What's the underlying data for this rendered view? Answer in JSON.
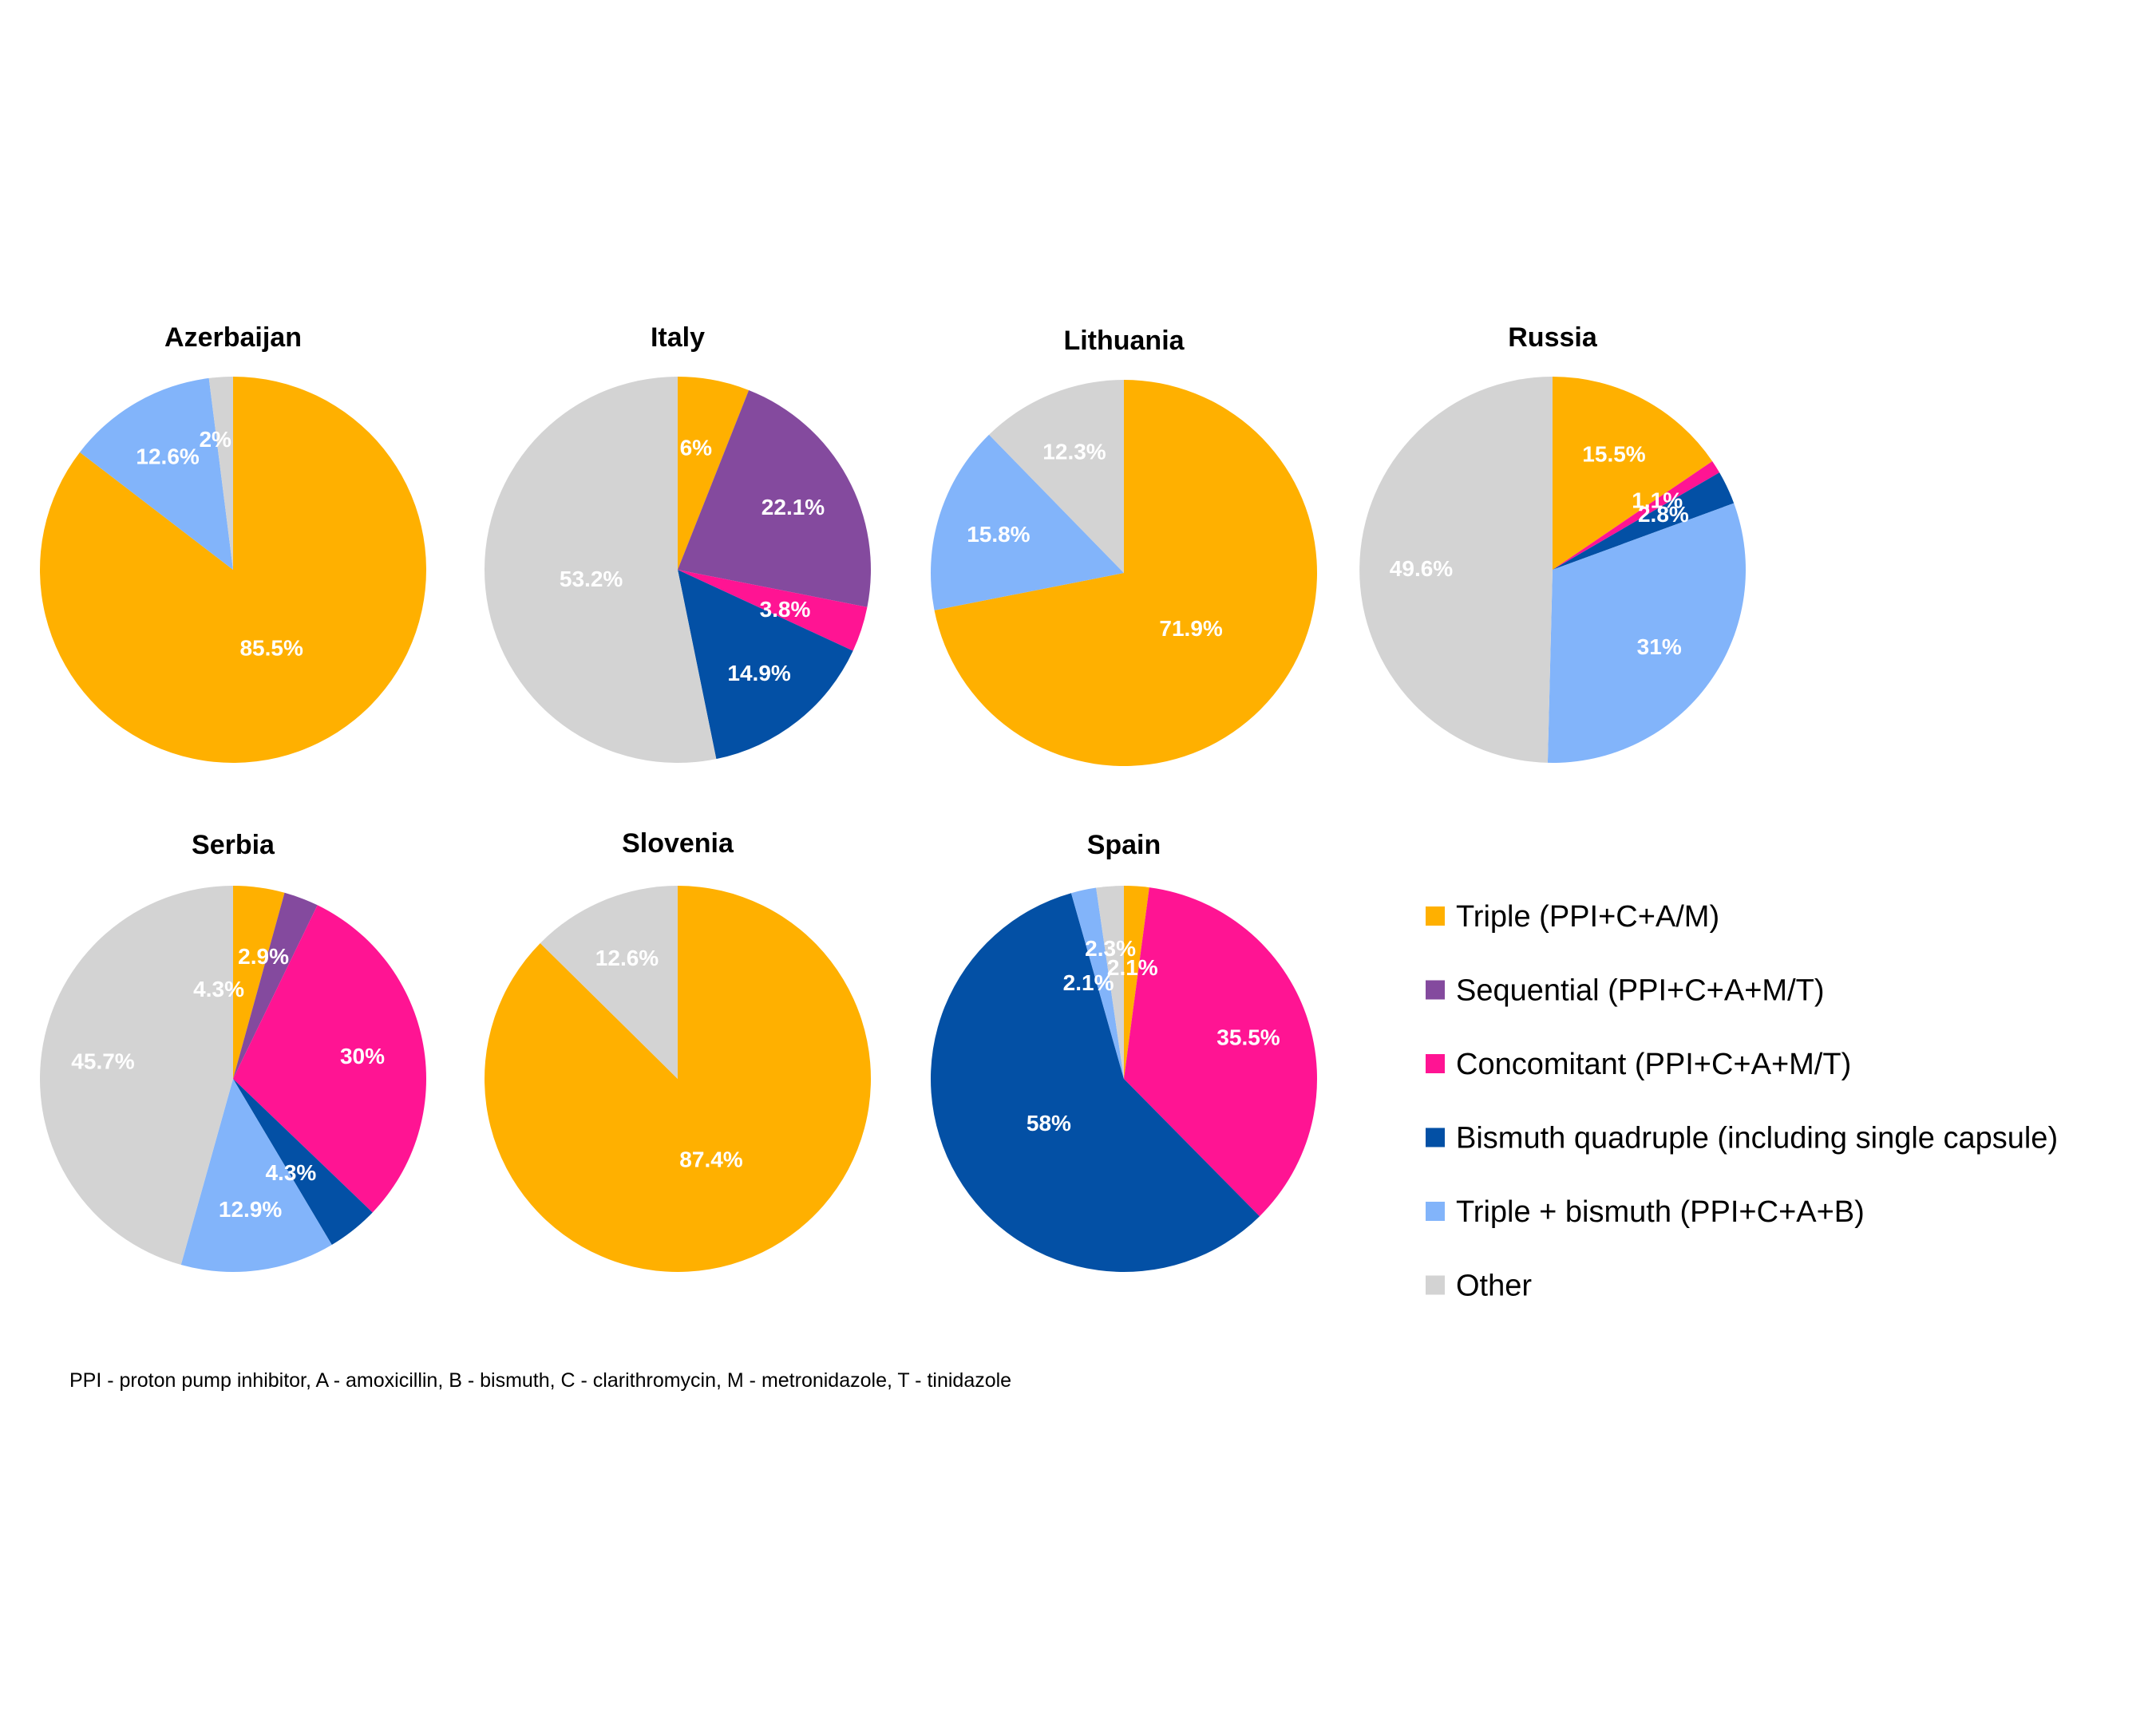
{
  "categories": [
    {
      "key": "triple",
      "label": "Triple (PPI+C+A/M)",
      "color": "#FFB000"
    },
    {
      "key": "sequential",
      "label": "Sequential (PPI+C+A+M/T)",
      "color": "#844A9E"
    },
    {
      "key": "concomitant",
      "label": "Concomitant (PPI+C+A+M/T)",
      "color": "#FF1493"
    },
    {
      "key": "bismuth_quadruple",
      "label": "Bismuth quadruple (including single capsule)",
      "color": "#0350A5"
    },
    {
      "key": "triple_bismuth",
      "label": "Triple + bismuth (PPI+C+A+B)",
      "color": "#82B4FA"
    },
    {
      "key": "other",
      "label": "Other",
      "color": "#D3D3D3"
    }
  ],
  "chart_data": [
    {
      "type": "pie",
      "title": "Azerbaijan",
      "slices": [
        {
          "category": "triple",
          "value": 85.5,
          "label": "85.5%"
        },
        {
          "category": "triple_bismuth",
          "value": 12.6,
          "label": "12.6%"
        },
        {
          "category": "other",
          "value": 2,
          "label": "2%"
        }
      ]
    },
    {
      "type": "pie",
      "title": "Italy",
      "slices": [
        {
          "category": "triple",
          "value": 6,
          "label": "6%"
        },
        {
          "category": "sequential",
          "value": 22.1,
          "label": "22.1%"
        },
        {
          "category": "concomitant",
          "value": 3.8,
          "label": "3.8%"
        },
        {
          "category": "bismuth_quadruple",
          "value": 14.9,
          "label": "14.9%"
        },
        {
          "category": "other",
          "value": 53.2,
          "label": "53.2%"
        }
      ]
    },
    {
      "type": "pie",
      "title": "Lithuania",
      "slices": [
        {
          "category": "triple",
          "value": 71.9,
          "label": "71.9%"
        },
        {
          "category": "triple_bismuth",
          "value": 15.8,
          "label": "15.8%"
        },
        {
          "category": "other",
          "value": 12.3,
          "label": "12.3%"
        }
      ]
    },
    {
      "type": "pie",
      "title": "Russia",
      "slices": [
        {
          "category": "triple",
          "value": 15.5,
          "label": "15.5%"
        },
        {
          "category": "concomitant",
          "value": 1.1,
          "label": "1.1%"
        },
        {
          "category": "bismuth_quadruple",
          "value": 2.8,
          "label": "2.8%"
        },
        {
          "category": "triple_bismuth",
          "value": 31,
          "label": "31%"
        },
        {
          "category": "other",
          "value": 49.6,
          "label": "49.6%"
        }
      ]
    },
    {
      "type": "pie",
      "title": "Serbia",
      "slices": [
        {
          "category": "triple",
          "value": 4.3,
          "label": "4.3%"
        },
        {
          "category": "sequential",
          "value": 2.9,
          "label": "2.9%"
        },
        {
          "category": "concomitant",
          "value": 30,
          "label": "30%"
        },
        {
          "category": "bismuth_quadruple",
          "value": 4.3,
          "label": "4.3%"
        },
        {
          "category": "triple_bismuth",
          "value": 12.9,
          "label": "12.9%"
        },
        {
          "category": "other",
          "value": 45.7,
          "label": "45.7%"
        }
      ]
    },
    {
      "type": "pie",
      "title": "Slovenia",
      "slices": [
        {
          "category": "triple",
          "value": 87.4,
          "label": "87.4%"
        },
        {
          "category": "other",
          "value": 12.6,
          "label": "12.6%"
        }
      ]
    },
    {
      "type": "pie",
      "title": "Spain",
      "slices": [
        {
          "category": "triple",
          "value": 2.1,
          "label": "2.1%"
        },
        {
          "category": "concomitant",
          "value": 35.5,
          "label": "35.5%"
        },
        {
          "category": "bismuth_quadruple",
          "value": 58,
          "label": "58%"
        },
        {
          "category": "triple_bismuth",
          "value": 2.1,
          "label": "2.1%"
        },
        {
          "category": "other",
          "value": 2.3,
          "label": "2.3%"
        }
      ]
    }
  ],
  "legend_position": "right",
  "footnote": "PPI - proton pump inhibitor, A - amoxicillin, B - bismuth, C - clarithromycin, M - metronidazole, T - tinidazole"
}
